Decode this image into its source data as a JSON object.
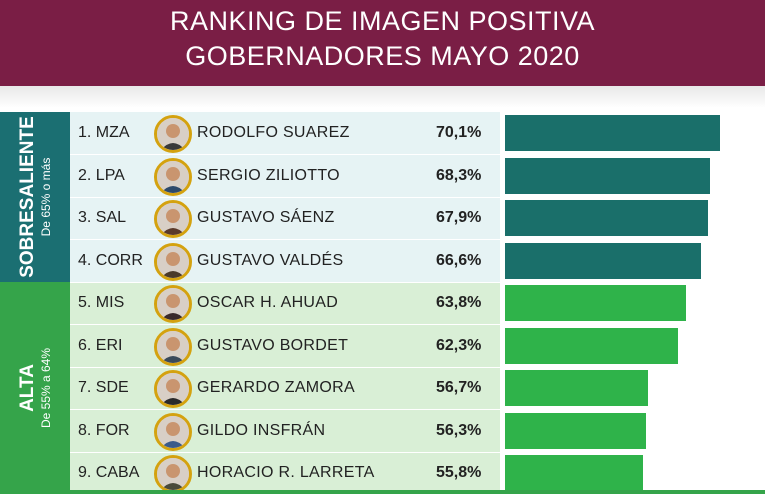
{
  "header": {
    "title_line1": "RANKING DE IMAGEN POSITIVA",
    "title_line2": "GOBERNADORES MAYO 2020"
  },
  "groups": [
    {
      "label": "SOBRESALIENTE",
      "sublabel": "De 65% o más",
      "color": "#1b6f72",
      "bar_color": "#1a6f6a",
      "bg": "#e6f3f4"
    },
    {
      "label": "ALTA",
      "sublabel": "De 55% a 64%",
      "color": "#35a44a",
      "bar_color": "#2fb34a",
      "bg": "#d9efd6"
    }
  ],
  "chart_data": {
    "type": "bar",
    "orientation": "horizontal",
    "title": "RANKING DE IMAGEN POSITIVA GOBERNADORES MAYO 2020",
    "categories": [
      "1. MZA",
      "2. LPA",
      "3. SAL",
      "4. CORR",
      "5. MIS",
      "6. ERI",
      "7. SDE",
      "8. FOR",
      "9. CABA"
    ],
    "names": [
      "RODOLFO SUAREZ",
      "SERGIO ZILIOTTO",
      "GUSTAVO SÁENZ",
      "GUSTAVO VALDÉS",
      "OSCAR H. AHUAD",
      "GUSTAVO BORDET",
      "GERARDO ZAMORA",
      "GILDO INSFRÁN",
      "HORACIO R. LARRETA"
    ],
    "values": [
      70.1,
      68.3,
      67.9,
      66.6,
      63.8,
      62.3,
      56.7,
      56.3,
      55.8
    ],
    "labels": [
      "70,1%",
      "68,3%",
      "67,9%",
      "66,6%",
      "63,8%",
      "62,3%",
      "56,7%",
      "56,3%",
      "55,8%"
    ],
    "group": [
      0,
      0,
      0,
      0,
      1,
      1,
      1,
      1,
      1
    ]
  }
}
